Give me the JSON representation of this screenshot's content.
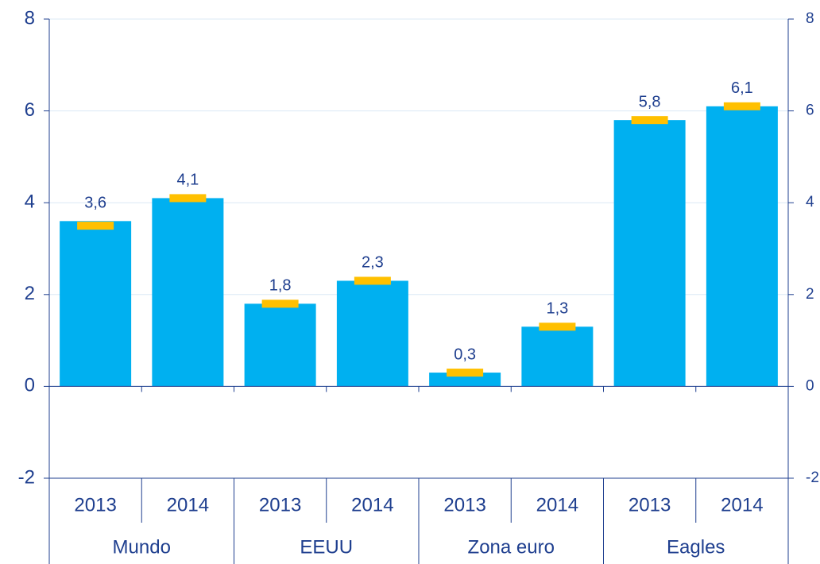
{
  "chart_data": {
    "type": "bar",
    "categories": [
      "2013",
      "2014",
      "2013",
      "2014",
      "2013",
      "2014",
      "2013",
      "2014"
    ],
    "groups": [
      "Mundo",
      "EEUU",
      "Zona euro",
      "Eagles"
    ],
    "values": [
      3.6,
      4.1,
      1.8,
      2.3,
      0.3,
      1.3,
      5.8,
      6.1
    ],
    "value_labels": [
      "3,6",
      "4,1",
      "1,8",
      "2,3",
      "0,3",
      "1,3",
      "5,8",
      "6,1"
    ],
    "color": "#00b0f0",
    "marker_values": [
      3.5,
      4.1,
      1.8,
      2.3,
      0.3,
      1.3,
      5.8,
      6.1
    ],
    "marker_color": "#ffc000",
    "ylim": [
      -2,
      8
    ],
    "yticks": [
      -2,
      0,
      2,
      4,
      6,
      8
    ],
    "y2lim": [
      -2,
      8
    ],
    "y2ticks": [
      -2,
      0,
      2,
      4,
      6,
      8
    ],
    "grid": true
  }
}
